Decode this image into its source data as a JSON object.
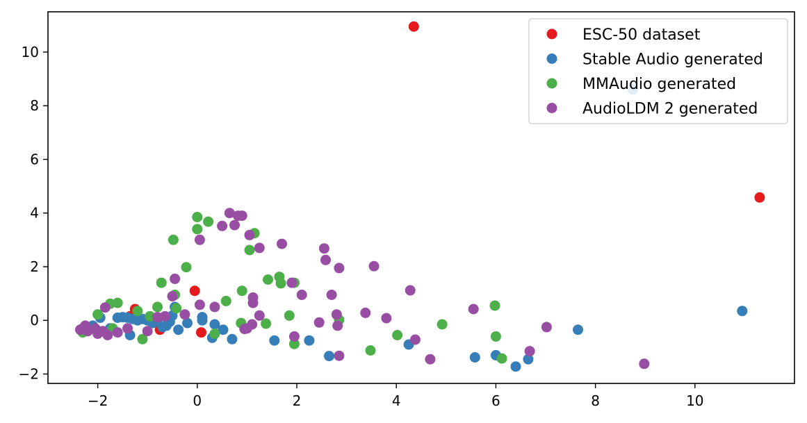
{
  "chart_data": {
    "type": "scatter",
    "title": "",
    "xlabel": "",
    "ylabel": "",
    "xlim": [
      -3.0,
      12.0
    ],
    "ylim": [
      -2.35,
      11.5
    ],
    "xticks": [
      -2,
      0,
      2,
      4,
      6,
      8,
      10
    ],
    "yticks": [
      -2,
      0,
      2,
      4,
      6,
      8,
      10
    ],
    "xtick_labels": [
      "−2",
      "0",
      "2",
      "4",
      "6",
      "8",
      "10"
    ],
    "ytick_labels": [
      "−2",
      "0",
      "2",
      "4",
      "6",
      "8",
      "10"
    ],
    "grid": false,
    "legend_position": "top-right",
    "series": [
      {
        "name": "ESC-50 dataset",
        "color": "#e41a1c",
        "points": [
          [
            4.35,
            10.95
          ],
          [
            11.3,
            4.58
          ],
          [
            -0.05,
            1.1
          ],
          [
            0.08,
            -0.45
          ],
          [
            -1.25,
            0.42
          ],
          [
            -0.75,
            -0.35
          ],
          [
            -1.35,
            0.15
          ],
          [
            -0.9,
            0.05
          ]
        ]
      },
      {
        "name": "Stable Audio generated",
        "color": "#377eb8",
        "points": [
          [
            8.75,
            8.6
          ],
          [
            10.95,
            0.35
          ],
          [
            7.65,
            -0.35
          ],
          [
            6.65,
            -1.45
          ],
          [
            6.4,
            -1.72
          ],
          [
            6.0,
            -1.3
          ],
          [
            5.58,
            -1.38
          ],
          [
            4.25,
            -0.9
          ],
          [
            2.65,
            -1.33
          ],
          [
            2.25,
            -0.75
          ],
          [
            1.55,
            -0.75
          ],
          [
            0.7,
            -0.7
          ],
          [
            0.52,
            -0.35
          ],
          [
            0.35,
            -0.15
          ],
          [
            0.3,
            -0.65
          ],
          [
            0.1,
            0.12
          ],
          [
            0.1,
            0.0
          ],
          [
            -0.2,
            -0.1
          ],
          [
            -0.38,
            -0.35
          ],
          [
            -0.45,
            0.5
          ],
          [
            -0.5,
            0.18
          ],
          [
            -0.55,
            -0.05
          ],
          [
            -0.62,
            -0.2
          ],
          [
            -0.7,
            -0.25
          ],
          [
            -0.8,
            0.0
          ],
          [
            -0.9,
            -0.1
          ],
          [
            -1.0,
            0.0
          ],
          [
            -1.1,
            0.05
          ],
          [
            -1.2,
            0.0
          ],
          [
            -1.3,
            0.05
          ],
          [
            -1.35,
            -0.55
          ],
          [
            -1.4,
            0.1
          ],
          [
            -1.5,
            0.12
          ],
          [
            -1.6,
            0.1
          ],
          [
            -1.75,
            -0.3
          ],
          [
            -1.95,
            0.1
          ],
          [
            -2.1,
            -0.2
          ],
          [
            -2.2,
            -0.35
          ],
          [
            -2.3,
            -0.3
          ]
        ]
      },
      {
        "name": "MMAudio generated",
        "color": "#4daf4a",
        "points": [
          [
            0.0,
            3.85
          ],
          [
            0.22,
            3.68
          ],
          [
            0.0,
            3.4
          ],
          [
            1.15,
            3.25
          ],
          [
            -0.48,
            3.0
          ],
          [
            1.05,
            2.62
          ],
          [
            -0.22,
            1.98
          ],
          [
            1.65,
            1.62
          ],
          [
            1.42,
            1.52
          ],
          [
            1.68,
            1.38
          ],
          [
            1.95,
            1.4
          ],
          [
            -0.72,
            1.4
          ],
          [
            0.9,
            1.1
          ],
          [
            -0.45,
            0.95
          ],
          [
            0.58,
            0.72
          ],
          [
            -0.42,
            0.45
          ],
          [
            -0.8,
            0.5
          ],
          [
            -1.2,
            0.35
          ],
          [
            -1.6,
            0.65
          ],
          [
            -1.75,
            0.62
          ],
          [
            -2.0,
            0.22
          ],
          [
            -0.95,
            0.15
          ],
          [
            1.85,
            0.18
          ],
          [
            2.85,
            0.02
          ],
          [
            0.88,
            -0.1
          ],
          [
            1.38,
            -0.12
          ],
          [
            4.92,
            -0.15
          ],
          [
            5.98,
            0.55
          ],
          [
            6.0,
            -0.6
          ],
          [
            6.12,
            -1.42
          ],
          [
            4.02,
            -0.55
          ],
          [
            3.48,
            -1.12
          ],
          [
            1.95,
            -0.88
          ],
          [
            0.35,
            -0.5
          ],
          [
            -1.1,
            -0.7
          ],
          [
            -1.7,
            -0.3
          ],
          [
            -2.3,
            -0.45
          ]
        ]
      },
      {
        "name": "AudioLDM 2 generated",
        "color": "#984ea3",
        "points": [
          [
            0.65,
            4.0
          ],
          [
            0.82,
            3.9
          ],
          [
            0.9,
            3.9
          ],
          [
            0.5,
            3.52
          ],
          [
            0.75,
            3.55
          ],
          [
            1.05,
            3.18
          ],
          [
            0.05,
            3.0
          ],
          [
            1.25,
            2.7
          ],
          [
            1.7,
            2.85
          ],
          [
            2.55,
            2.68
          ],
          [
            2.58,
            2.25
          ],
          [
            2.85,
            1.95
          ],
          [
            3.55,
            2.02
          ],
          [
            -0.45,
            1.55
          ],
          [
            1.9,
            1.4
          ],
          [
            2.1,
            0.95
          ],
          [
            2.7,
            0.95
          ],
          [
            4.28,
            1.12
          ],
          [
            1.12,
            0.85
          ],
          [
            1.12,
            0.65
          ],
          [
            0.05,
            0.58
          ],
          [
            0.35,
            0.5
          ],
          [
            -0.5,
            0.9
          ],
          [
            -1.85,
            0.48
          ],
          [
            2.8,
            0.22
          ],
          [
            3.38,
            0.28
          ],
          [
            3.8,
            0.08
          ],
          [
            5.55,
            0.42
          ],
          [
            2.45,
            -0.08
          ],
          [
            2.82,
            -0.2
          ],
          [
            1.25,
            0.18
          ],
          [
            1.1,
            -0.15
          ],
          [
            1.0,
            -0.3
          ],
          [
            0.95,
            -0.32
          ],
          [
            -0.25,
            0.22
          ],
          [
            -0.65,
            0.15
          ],
          [
            -0.8,
            0.12
          ],
          [
            7.02,
            -0.25
          ],
          [
            1.95,
            -0.6
          ],
          [
            4.38,
            -0.72
          ],
          [
            4.68,
            -1.45
          ],
          [
            2.85,
            -1.32
          ],
          [
            6.68,
            -1.15
          ],
          [
            8.98,
            -1.62
          ],
          [
            -1.0,
            -0.4
          ],
          [
            -1.4,
            -0.3
          ],
          [
            -1.6,
            -0.45
          ],
          [
            -1.8,
            -0.55
          ],
          [
            -2.0,
            -0.5
          ],
          [
            -2.2,
            -0.4
          ],
          [
            -2.35,
            -0.35
          ],
          [
            -2.25,
            -0.2
          ],
          [
            -2.05,
            -0.3
          ],
          [
            -1.9,
            -0.4
          ]
        ]
      }
    ]
  }
}
